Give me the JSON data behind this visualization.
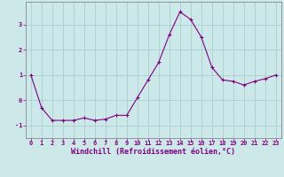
{
  "x": [
    0,
    1,
    2,
    3,
    4,
    5,
    6,
    7,
    8,
    9,
    10,
    11,
    12,
    13,
    14,
    15,
    16,
    17,
    18,
    19,
    20,
    21,
    22,
    23
  ],
  "y": [
    1.0,
    -0.3,
    -0.8,
    -0.8,
    -0.8,
    -0.7,
    -0.8,
    -0.75,
    -0.6,
    -0.6,
    0.1,
    0.8,
    1.5,
    2.6,
    3.5,
    3.2,
    2.5,
    1.3,
    0.8,
    0.75,
    0.6,
    0.75,
    0.85,
    1.0
  ],
  "line_color": "#800080",
  "marker": "+",
  "marker_size": 3,
  "bg_color": "#cce8e8",
  "grid_color": "#a8d0d0",
  "xlabel": "Windchill (Refroidissement éolien,°C)",
  "xlim": [
    -0.5,
    23.5
  ],
  "ylim": [
    -1.5,
    3.9
  ],
  "yticks": [
    -1,
    0,
    1,
    2,
    3
  ],
  "xticks": [
    0,
    1,
    2,
    3,
    4,
    5,
    6,
    7,
    8,
    9,
    10,
    11,
    12,
    13,
    14,
    15,
    16,
    17,
    18,
    19,
    20,
    21,
    22,
    23
  ],
  "tick_fontsize": 5.0,
  "xlabel_fontsize": 6.0,
  "spine_color": "#888888"
}
